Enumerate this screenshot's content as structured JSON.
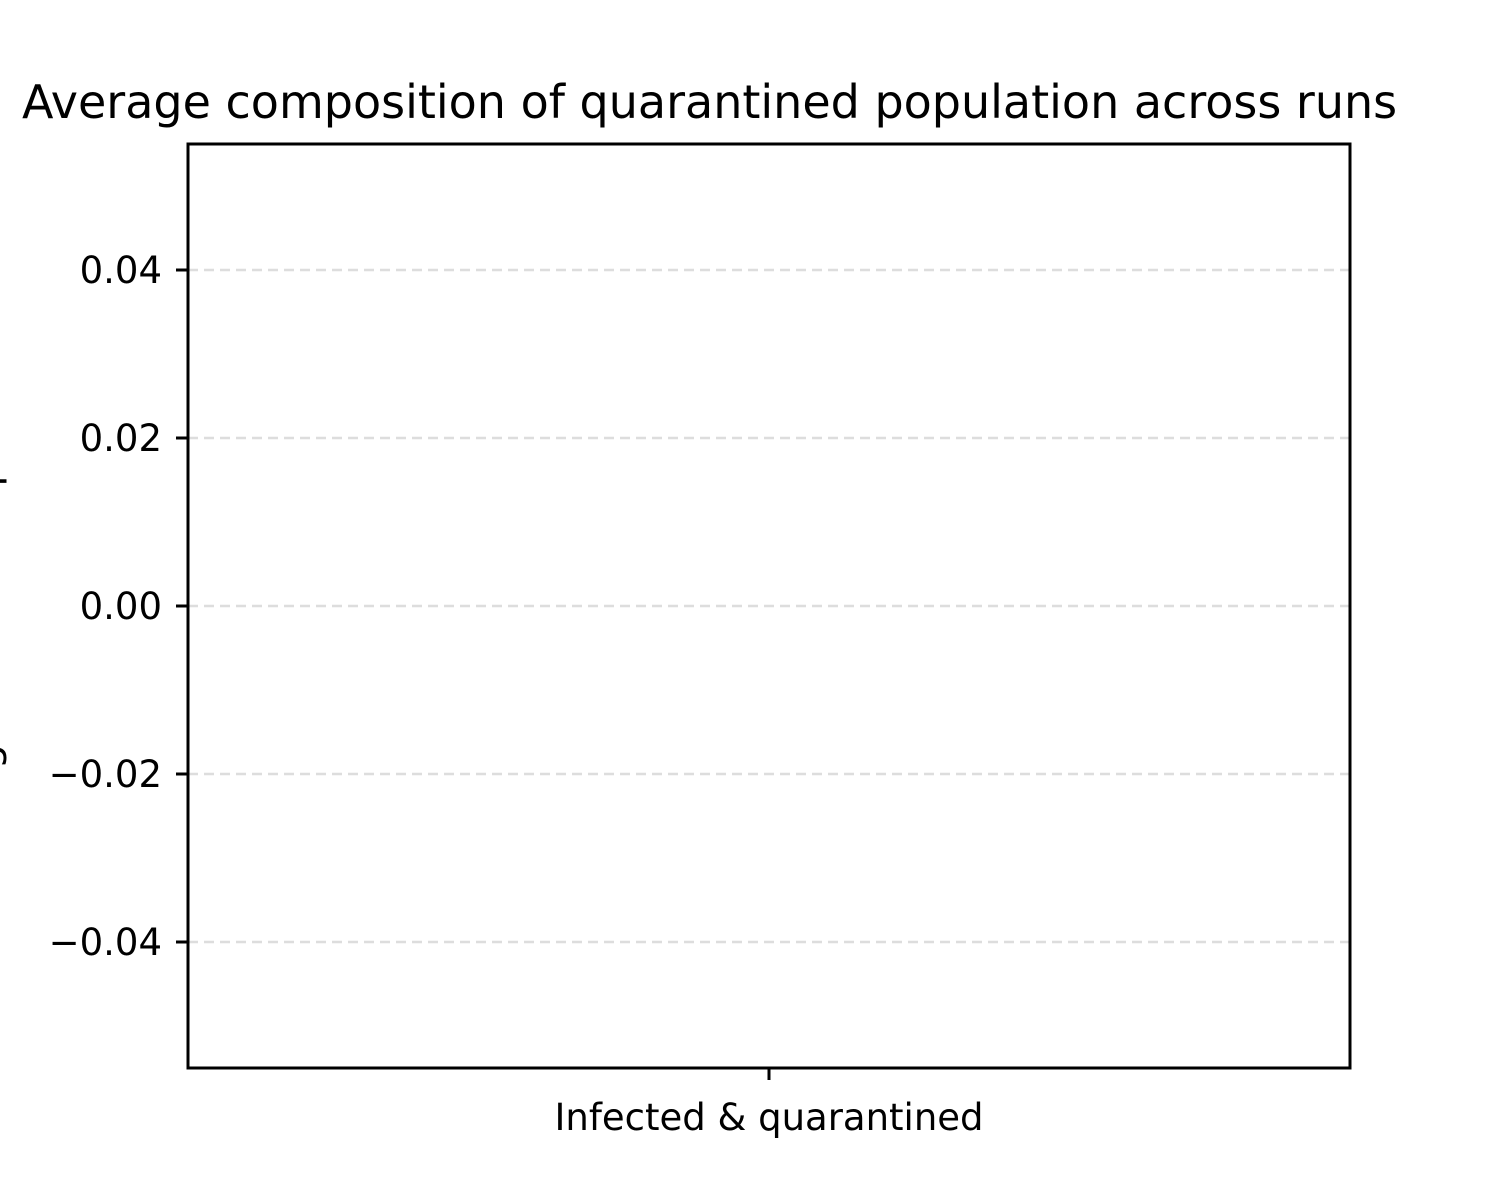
{
  "chart_data": {
    "type": "bar",
    "title": "Average composition of quarantined population across runs",
    "xlabel": "",
    "ylabel": "Average number of persons",
    "categories": [
      "Infected & quarantined"
    ],
    "series": [
      {
        "values": [
          0
        ]
      }
    ],
    "ylim": [
      -0.055,
      0.055
    ],
    "yticks": [
      -0.04,
      -0.02,
      0.0,
      0.02,
      0.04
    ],
    "ytick_labels": [
      "−0.04",
      "−0.02",
      "0.00",
      "0.02",
      "0.04"
    ],
    "grid": "y-dashed",
    "legend": "none"
  }
}
